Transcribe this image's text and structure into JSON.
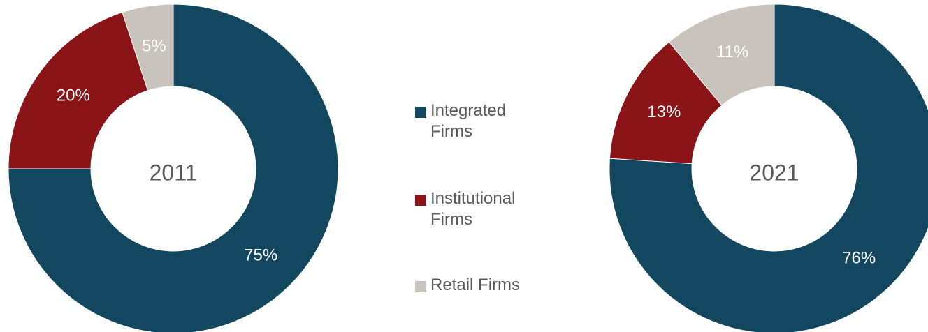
{
  "chart_data": [
    {
      "type": "pie",
      "title": "2011",
      "categories": [
        "Integrated Firms",
        "Institutional Firms",
        "Retail Firms"
      ],
      "values": [
        75,
        20,
        5
      ],
      "value_labels": [
        "75%",
        "20%",
        "5%"
      ],
      "colors": [
        "#12475f",
        "#8b1418",
        "#c9c3bd"
      ]
    },
    {
      "type": "pie",
      "title": "2021",
      "categories": [
        "Integrated Firms",
        "Institutional Firms",
        "Retail Firms"
      ],
      "values": [
        76,
        13,
        11
      ],
      "value_labels": [
        "76%",
        "13%",
        "11%"
      ],
      "colors": [
        "#12475f",
        "#8b1418",
        "#c9c3bd"
      ]
    }
  ]
}
